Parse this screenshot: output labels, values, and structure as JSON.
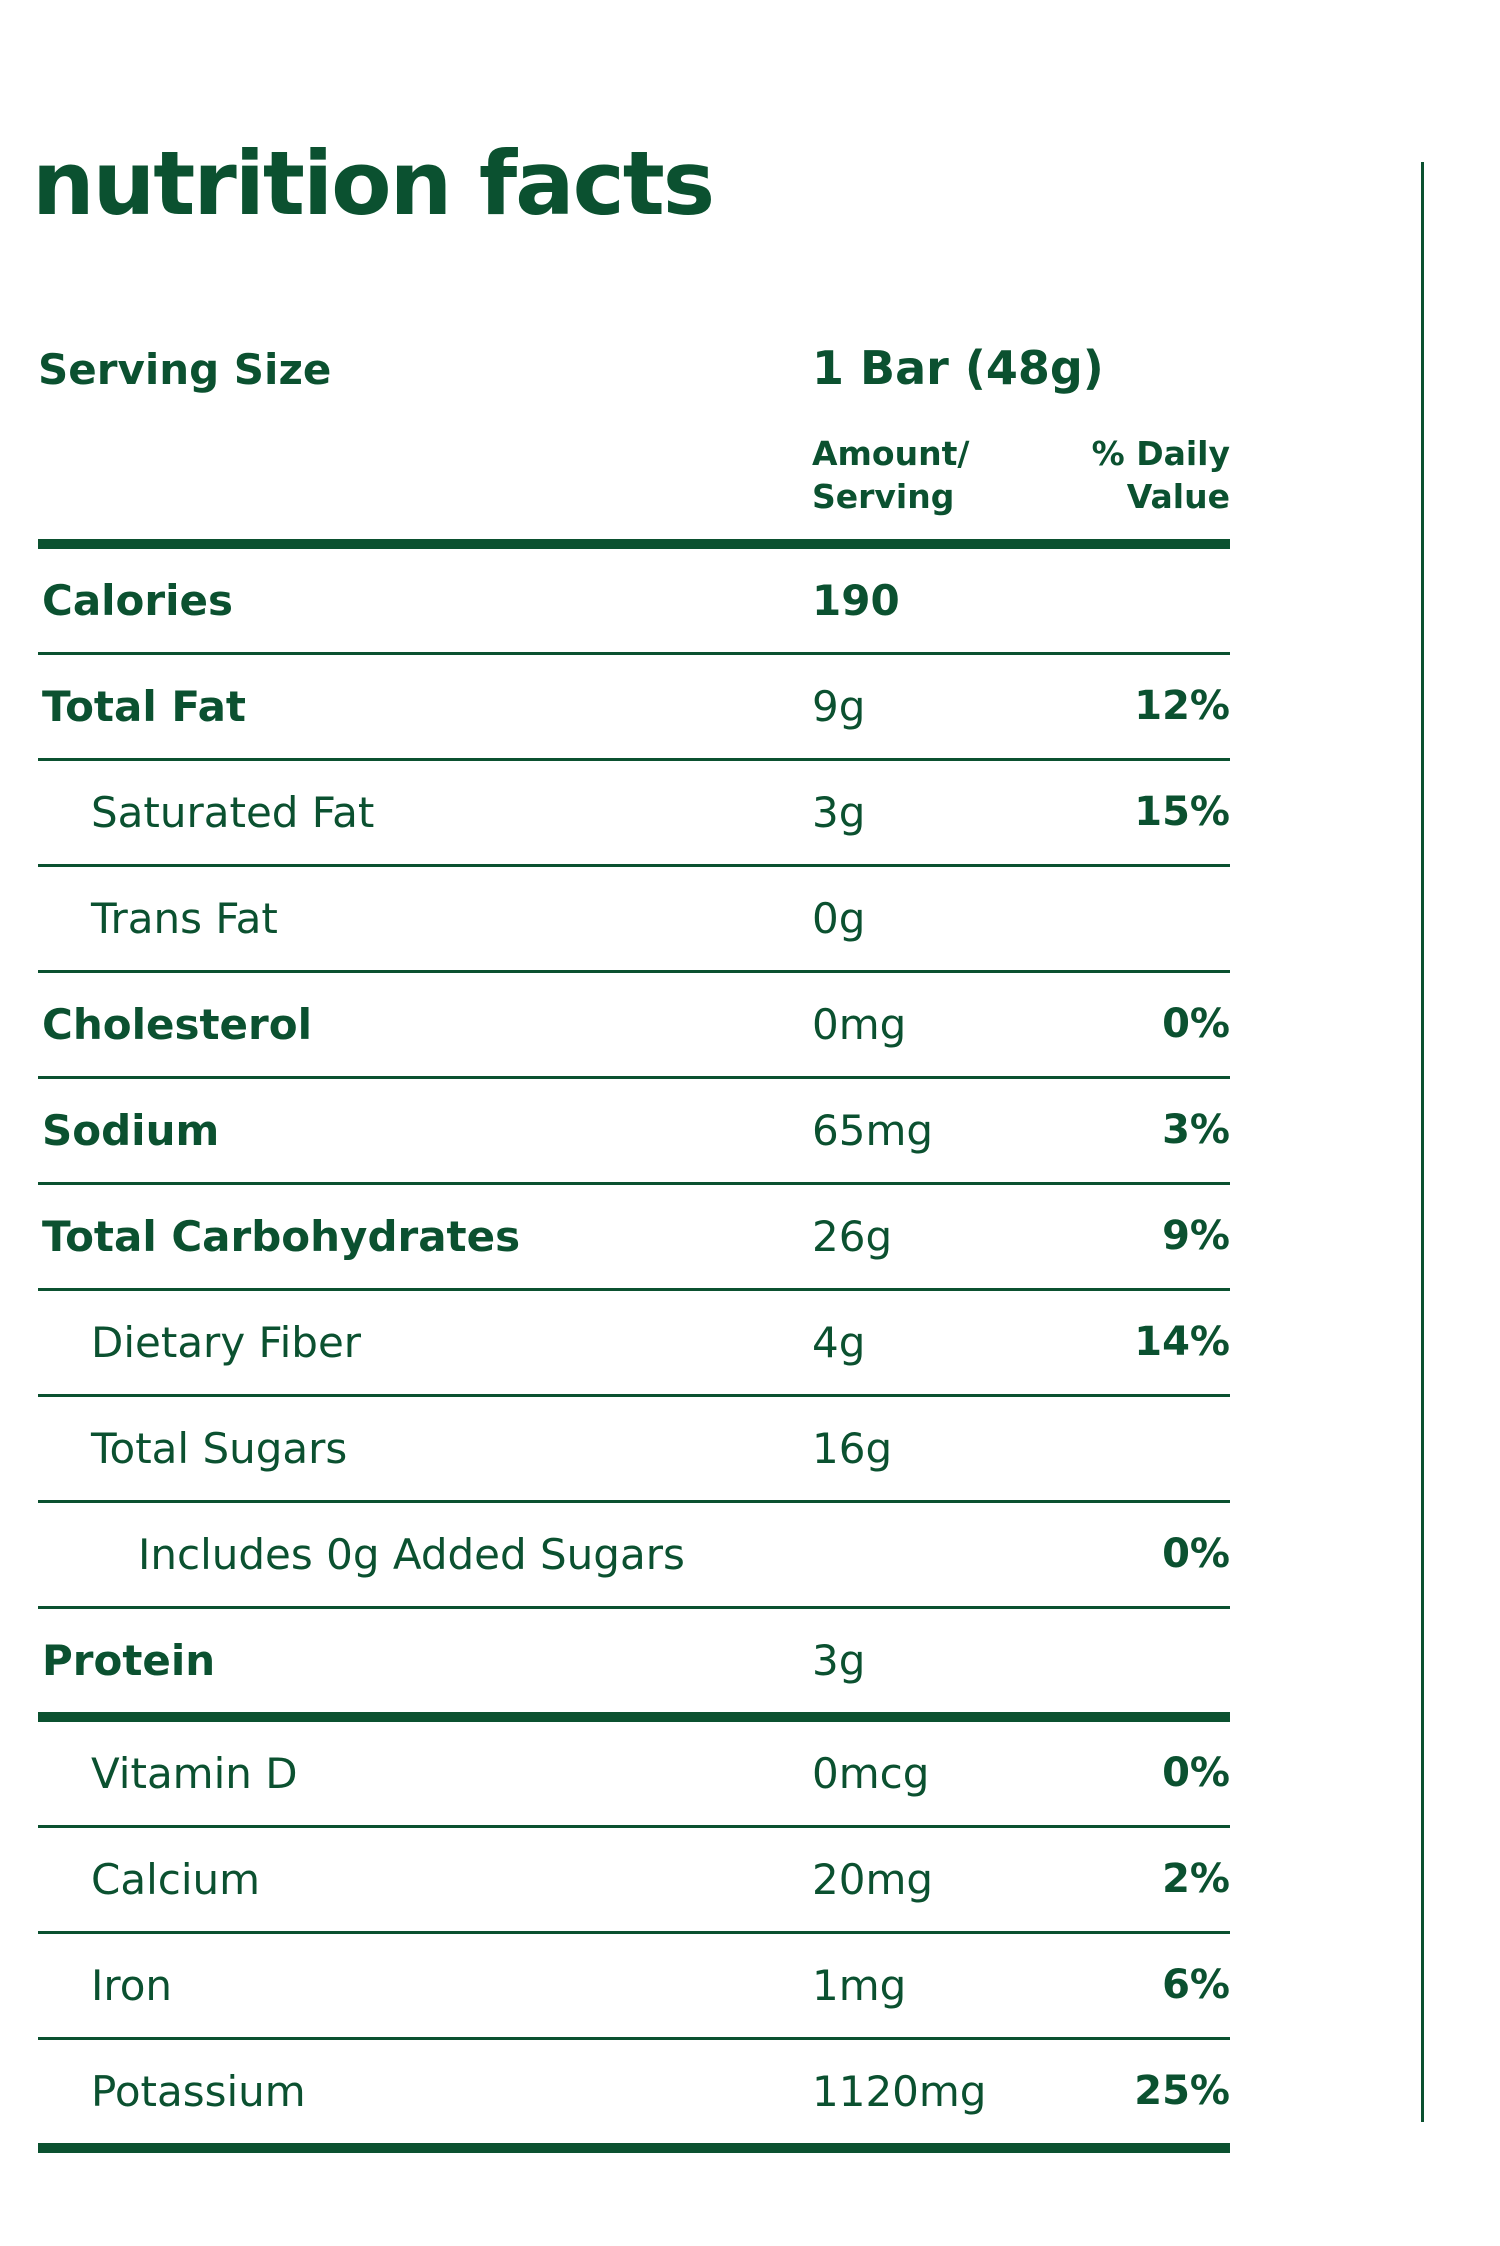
{
  "title": "nutrition facts",
  "serving": {
    "label": "Serving Size",
    "value": "1 Bar (48g)"
  },
  "columns": {
    "amount_line1": "Amount/",
    "amount_line2": "Serving",
    "dv_line1": "% Daily",
    "dv_line2": "Value"
  },
  "rows": [
    {
      "name": "Calories",
      "amount": "190",
      "dv": ""
    },
    {
      "name": "Total Fat",
      "amount": "9g",
      "dv": "12%"
    },
    {
      "name": "Saturated Fat",
      "amount": "3g",
      "dv": "15%"
    },
    {
      "name": "Trans Fat",
      "amount": "0g",
      "dv": ""
    },
    {
      "name": "Cholesterol",
      "amount": "0mg",
      "dv": "0%"
    },
    {
      "name": "Sodium",
      "amount": "65mg",
      "dv": "3%"
    },
    {
      "name": "Total Carbohydrates",
      "amount": "26g",
      "dv": "9%"
    },
    {
      "name": "Dietary Fiber",
      "amount": "4g",
      "dv": "14%"
    },
    {
      "name": "Total Sugars",
      "amount": "16g",
      "dv": ""
    },
    {
      "name": "Includes 0g Added Sugars",
      "amount": "",
      "dv": "0%"
    },
    {
      "name": "Protein",
      "amount": "3g",
      "dv": ""
    },
    {
      "name": "Vitamin D",
      "amount": "0mcg",
      "dv": "0%"
    },
    {
      "name": "Calcium",
      "amount": "20mg",
      "dv": "2%"
    },
    {
      "name": "Iron",
      "amount": "1mg",
      "dv": "6%"
    },
    {
      "name": "Potassium",
      "amount": "1120mg",
      "dv": "25%"
    }
  ],
  "colors": {
    "primary": "#0b5130",
    "background": "#ffffff"
  }
}
